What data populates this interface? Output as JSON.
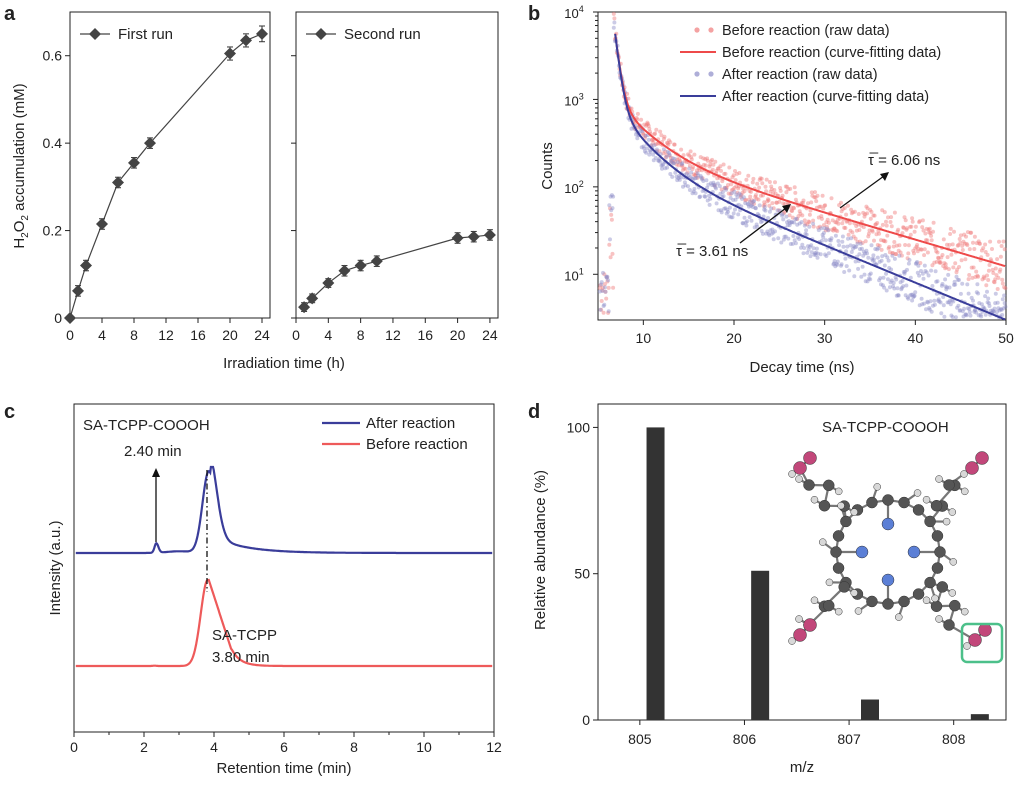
{
  "panel_labels": [
    "a",
    "b",
    "c",
    "d"
  ],
  "chart_data": [
    {
      "id": "a1",
      "type": "scatter",
      "legend": "First run",
      "ylabel": "H2O2 accumulation (mM)",
      "xlabel": "Irradiation time (h)",
      "xlim": [
        0,
        25
      ],
      "ylim": [
        0,
        0.7
      ],
      "xticks": [
        0,
        4,
        8,
        12,
        16,
        20,
        24
      ],
      "yticks": [
        0,
        0.2,
        0.4,
        0.6
      ],
      "series": [
        {
          "name": "First run",
          "x": [
            0,
            1,
            2,
            4,
            6,
            8,
            10,
            20,
            22,
            24
          ],
          "y": [
            0,
            0.062,
            0.12,
            0.215,
            0.31,
            0.355,
            0.4,
            0.605,
            0.635,
            0.65
          ],
          "err": [
            0,
            0.012,
            0.012,
            0.012,
            0.012,
            0.012,
            0.012,
            0.015,
            0.015,
            0.018
          ]
        }
      ]
    },
    {
      "id": "a2",
      "type": "scatter",
      "legend": "Second run",
      "xlim": [
        0,
        25
      ],
      "ylim": [
        0,
        0.7
      ],
      "xticks": [
        0,
        4,
        8,
        12,
        16,
        20,
        24
      ],
      "series": [
        {
          "name": "Second run",
          "x": [
            1,
            2,
            4,
            6,
            8,
            10,
            20,
            22,
            24
          ],
          "y": [
            0.025,
            0.045,
            0.08,
            0.108,
            0.12,
            0.13,
            0.183,
            0.186,
            0.19
          ],
          "err": [
            0.01,
            0.01,
            0.01,
            0.012,
            0.012,
            0.012,
            0.012,
            0.012,
            0.012
          ]
        }
      ]
    },
    {
      "id": "b",
      "type": "line",
      "ylabel": "Counts",
      "xlabel": "Decay time (ns)",
      "xlim": [
        5,
        50
      ],
      "ylim": [
        3,
        10000
      ],
      "yscale": "log",
      "xticks": [
        10,
        20,
        30,
        40,
        50
      ],
      "yticks": [
        "10^1",
        "10^2",
        "10^3",
        "10^4"
      ],
      "series": [
        {
          "name": "Before reaction (raw data)",
          "kind": "scatter",
          "color": "#f07a7a"
        },
        {
          "name": "Before reaction (curve-fitting data)",
          "kind": "line",
          "color": "#ee4a4a"
        },
        {
          "name": "After reaction (raw data)",
          "kind": "scatter",
          "color": "#8b8bc8"
        },
        {
          "name": "After reaction (curve-fitting data)",
          "kind": "line",
          "color": "#3a3d9a"
        }
      ],
      "annotations": [
        "τ̅ = 6.06 ns",
        "τ̅ = 3.61 ns"
      ],
      "lifetimes_ns": {
        "before": 6.06,
        "after": 3.61
      }
    },
    {
      "id": "c",
      "type": "line",
      "ylabel": "Intensity (a.u.)",
      "xlabel": "Retention time (min)",
      "xlim": [
        0,
        12
      ],
      "xticks": [
        0,
        2,
        4,
        6,
        8,
        10,
        12
      ],
      "series": [
        {
          "name": "After reaction",
          "color": "#3a3d9a",
          "peaks_min": [
            2.4,
            3.8
          ]
        },
        {
          "name": "Before reaction",
          "color": "#ee5a5a",
          "peaks_min": [
            3.8
          ]
        }
      ],
      "annotations": {
        "product_name": "SA-TCPP-COOOH",
        "product_time": "2.40 min",
        "reactant_name": "SA-TCPP",
        "reactant_time": "3.80 min"
      }
    },
    {
      "id": "d",
      "type": "bar",
      "ylabel": "Relative abundance (%)",
      "xlabel": "m/z",
      "title": "SA-TCPP-COOOH",
      "xlim": [
        804.6,
        808.5
      ],
      "ylim": [
        0,
        108
      ],
      "xticks": [
        805,
        806,
        807,
        808
      ],
      "yticks": [
        0,
        50,
        100
      ],
      "x": [
        805.15,
        806.15,
        807.2,
        808.25
      ],
      "values": [
        100,
        51,
        7,
        2
      ],
      "color": "#333333"
    }
  ],
  "text": {
    "a_legend1": "First run",
    "a_legend2": "Second run",
    "a_ylabel_pre": "H",
    "a_ylabel_sub1": "2",
    "a_ylabel_mid": "O",
    "a_ylabel_sub2": "2",
    "a_ylabel_post": " accumulation (mM)",
    "a_xlabel": "Irradiation time (h)",
    "b_ylabel": "Counts",
    "b_xlabel": "Decay time (ns)",
    "b_leg1": "Before reaction (raw data)",
    "b_leg2": "Before reaction (curve-fitting data)",
    "b_leg3": "After reaction (raw data)",
    "b_leg4": "After reaction (curve-fitting data)",
    "b_tau1": "τ̅ = 6.06 ns",
    "b_tau2": "τ̅ = 3.61 ns",
    "c_ylabel": "Intensity (a.u.)",
    "c_xlabel": "Retention time (min)",
    "c_leg1": "After reaction",
    "c_leg2": "Before reaction",
    "c_ann1": "SA-TCPP-COOOH",
    "c_ann2": "2.40 min",
    "c_ann3": "SA-TCPP",
    "c_ann4": "3.80 min",
    "d_ylabel": "Relative abundance (%)",
    "d_xlabel": "m/z",
    "d_title": "SA-TCPP-COOOH"
  },
  "colors": {
    "marker": "#444444",
    "before": "#ee4a4a",
    "after": "#3a3d9a",
    "bar": "#333333",
    "highlight": "#4cc08a"
  }
}
